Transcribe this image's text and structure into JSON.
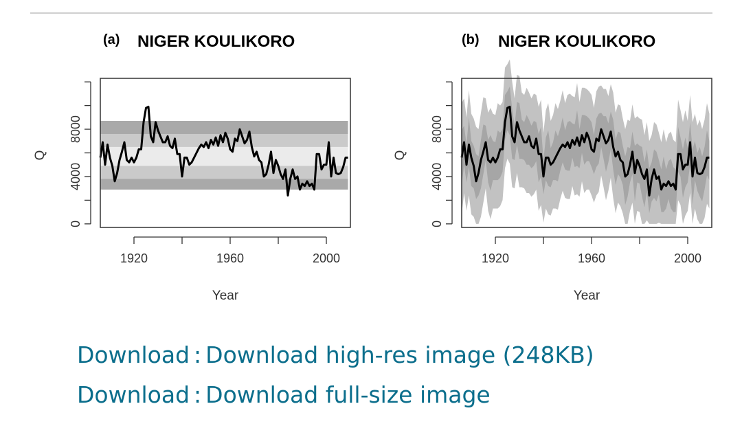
{
  "figure": {
    "chart_data": [
      {
        "type": "line",
        "panel_label": "(a)",
        "title": "NIGER KOULIKORO",
        "xlabel": "Year",
        "ylabel": "Q",
        "xlim": [
          1906,
          2010
        ],
        "ylim": [
          -300,
          12300
        ],
        "xticks": [
          1920,
          1940,
          1960,
          1980,
          2000
        ],
        "xtick_labels": [
          "1920",
          "",
          "1960",
          "",
          "2000"
        ],
        "yticks": [
          0,
          2000,
          4000,
          6000,
          8000,
          10000,
          12000
        ],
        "ytick_labels": [
          "0",
          "",
          "4000",
          "",
          "8000",
          "",
          ""
        ],
        "bands": [
          {
            "name": "outer",
            "low": 2900,
            "high": 8700,
            "color": "#a9a9a9"
          },
          {
            "name": "middle",
            "low": 3800,
            "high": 7600,
            "color": "#cacaca"
          },
          {
            "name": "inner",
            "low": 4900,
            "high": 6500,
            "color": "#ebebeb"
          }
        ],
        "series": [
          {
            "name": "Q",
            "color": "#000000",
            "x": [
              1906,
              1907,
              1908,
              1909,
              1910,
              1911,
              1912,
              1913,
              1914,
              1915,
              1916,
              1917,
              1918,
              1919,
              1920,
              1921,
              1922,
              1923,
              1924,
              1925,
              1926,
              1927,
              1928,
              1929,
              1930,
              1931,
              1932,
              1933,
              1934,
              1935,
              1936,
              1937,
              1938,
              1939,
              1940,
              1941,
              1942,
              1943,
              1944,
              1945,
              1946,
              1947,
              1948,
              1949,
              1950,
              1951,
              1952,
              1953,
              1954,
              1955,
              1956,
              1957,
              1958,
              1959,
              1960,
              1961,
              1962,
              1963,
              1964,
              1965,
              1966,
              1967,
              1968,
              1969,
              1970,
              1971,
              1972,
              1973,
              1974,
              1975,
              1976,
              1977,
              1978,
              1979,
              1980,
              1981,
              1982,
              1983,
              1984,
              1985,
              1986,
              1987,
              1988,
              1989,
              1990,
              1991,
              1992,
              1993,
              1994,
              1995,
              1996,
              1997,
              1998,
              1999,
              2000,
              2001,
              2002,
              2003,
              2004,
              2005,
              2006,
              2007,
              2008,
              2009
            ],
            "y": [
              5600,
              6900,
              5000,
              6700,
              5600,
              4900,
              3600,
              4300,
              5400,
              6100,
              6900,
              5400,
              5200,
              5600,
              5200,
              5600,
              6300,
              6300,
              8600,
              9800,
              9900,
              7400,
              6900,
              8600,
              7900,
              7400,
              6900,
              6900,
              7400,
              6600,
              6400,
              7200,
              5900,
              5900,
              4000,
              5600,
              5600,
              5000,
              5200,
              5600,
              6000,
              6400,
              6700,
              6500,
              6900,
              6400,
              7100,
              6700,
              7300,
              6600,
              7500,
              6900,
              7700,
              7200,
              6300,
              6100,
              7200,
              7000,
              8000,
              7400,
              6800,
              7100,
              7800,
              6500,
              5700,
              6100,
              5400,
              5200,
              4000,
              4200,
              5000,
              6100,
              4300,
              5400,
              4900,
              4200,
              3800,
              4600,
              2400,
              3800,
              4600,
              3800,
              4000,
              2900,
              3400,
              3200,
              3600,
              3200,
              3400,
              2900,
              5900,
              5900,
              4600,
              5000,
              5000,
              6900,
              4000,
              5600,
              4300,
              4200,
              4300,
              4800,
              5600,
              5600
            ]
          }
        ]
      },
      {
        "type": "line",
        "panel_label": "(b)",
        "title": "NIGER KOULIKORO",
        "xlabel": "Year",
        "ylabel": "Q",
        "xlim": [
          1906,
          2010
        ],
        "ylim": [
          -300,
          12300
        ],
        "xticks": [
          1920,
          1940,
          1960,
          1980,
          2000
        ],
        "xtick_labels": [
          "1920",
          "",
          "1960",
          "",
          "2000"
        ],
        "yticks": [
          0,
          2000,
          4000,
          6000,
          8000,
          10000,
          12000
        ],
        "ytick_labels": [
          "0",
          "",
          "4000",
          "",
          "8000",
          "",
          ""
        ],
        "envelope": {
          "outer_color": "#c2c2c2",
          "inner_color": "#a6a6a6",
          "outer_offsets": [
            -4300,
            4000
          ],
          "inner_offsets": [
            -1900,
            1700
          ]
        },
        "series": [
          {
            "name": "Q",
            "color": "#000000",
            "ref": "same as panel (a)"
          }
        ]
      }
    ]
  },
  "links": {
    "prefix": "Download",
    "separator": ":",
    "hires": "Download high-res image (248KB)",
    "fullsize": "Download full-size image"
  }
}
